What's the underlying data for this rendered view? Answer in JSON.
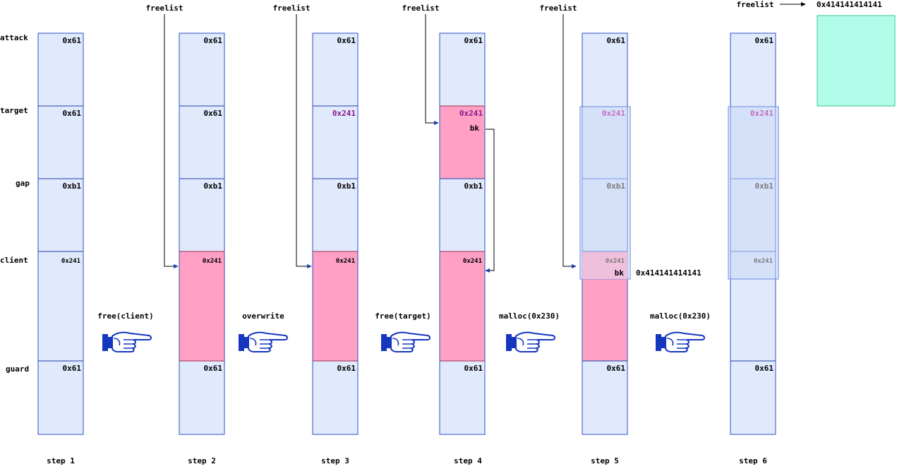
{
  "row_labels": [
    "attack",
    "target",
    "gap",
    "client",
    "guard"
  ],
  "steps": [
    "step 1",
    "step 2",
    "step 3",
    "step 4",
    "step 5",
    "step 6"
  ],
  "actions": [
    "free(client)",
    "overwrite",
    "free(target)",
    "malloc(0x230)",
    "malloc(0x230)"
  ],
  "freelist_label": "freelist",
  "sizes": {
    "attack": "0x61",
    "target": "0x61",
    "target_overwritten": "0x241",
    "gap": "0xb1",
    "client": "0x241",
    "guard": "0x61"
  },
  "bk_label": "bk",
  "fake_address": "0x414141414141",
  "colors": {
    "allocated": "#e0eafc",
    "freed": "#ffa0c4",
    "overwritten_size": "#8b1a8b",
    "fake_chunk": "#b0fce8"
  },
  "icon": "pointing-hand-icon"
}
